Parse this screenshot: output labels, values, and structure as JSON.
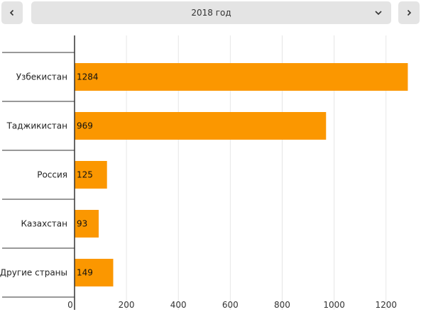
{
  "header": {
    "prev_icon": "chevron-left-icon",
    "next_icon": "chevron-right-icon",
    "dropdown_icon": "chevron-down-icon",
    "period_selected": "2018 год"
  },
  "colors": {
    "bar": "#fb9700",
    "grid": "#e6e6e6",
    "axis": "#333333"
  },
  "chart_data": {
    "type": "bar",
    "orientation": "horizontal",
    "categories": [
      "Узбекистан",
      "Таджикистан",
      "Россия",
      "Казахстан",
      "Другие страны"
    ],
    "values": [
      1284,
      969,
      125,
      93,
      149
    ],
    "xticks": [
      0,
      200,
      400,
      600,
      800,
      1000,
      1200
    ],
    "xlim": [
      0,
      1300
    ],
    "grid": true,
    "data_labels": true
  }
}
